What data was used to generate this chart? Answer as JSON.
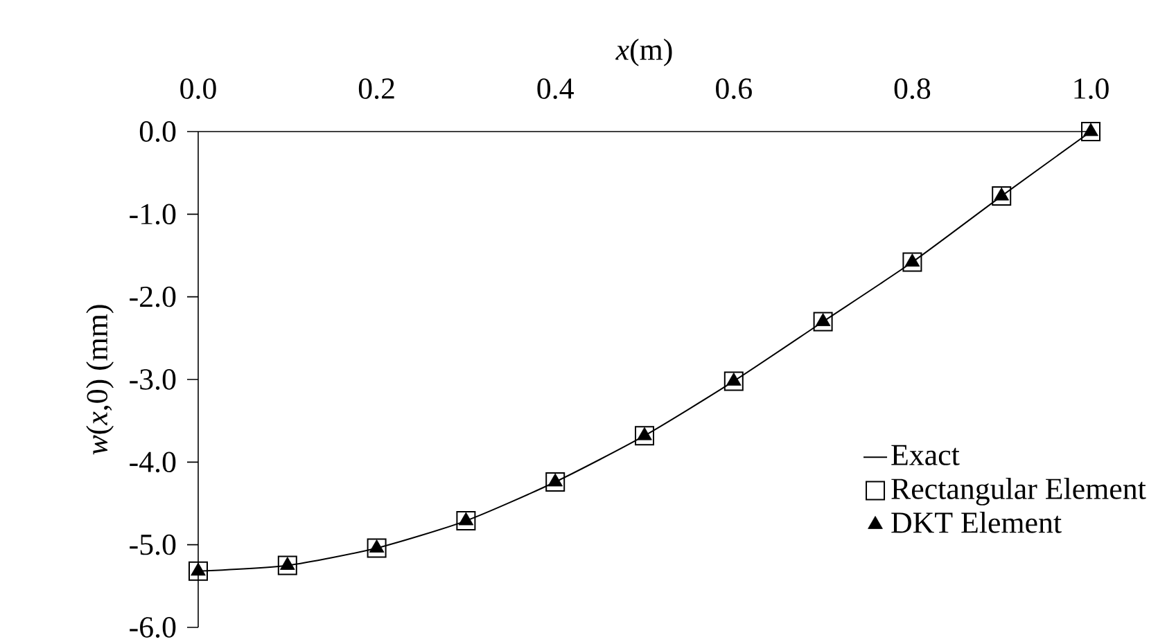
{
  "chart_data": {
    "type": "line",
    "xlabel": "*x*(m)",
    "ylabel": "*w*(*x*,0) (mm)",
    "x": [
      0.0,
      0.1,
      0.2,
      0.3,
      0.4,
      0.5,
      0.6,
      0.7,
      0.8,
      0.9,
      1.0
    ],
    "series": [
      {
        "name": "Exact",
        "color": "#000000",
        "marker": "none",
        "line_style": "solid",
        "values": [
          -5.32,
          -5.25,
          -5.04,
          -4.71,
          -4.24,
          -3.68,
          -3.02,
          -2.3,
          -1.58,
          -0.78,
          0.0
        ]
      },
      {
        "name": "Rectangular Element",
        "type": "scatter",
        "color": "#000000",
        "marker": "square",
        "values": [
          -5.32,
          -5.25,
          -5.04,
          -4.71,
          -4.24,
          -3.68,
          -3.02,
          -2.3,
          -1.58,
          -0.78,
          0.0
        ]
      },
      {
        "name": "DKT Element",
        "type": "scatter",
        "color": "#000000",
        "marker": "triangle",
        "values": [
          -5.32,
          -5.25,
          -5.04,
          -4.71,
          -4.24,
          -3.68,
          -3.02,
          -2.3,
          -1.58,
          -0.78,
          0.0
        ]
      }
    ],
    "xlim": [
      0.0,
      1.0
    ],
    "xticks": [
      {
        "value": 0,
        "label": "0.0"
      },
      0.2,
      0.4,
      0.6,
      0.8,
      {
        "value": 1,
        "label": "1.0"
      }
    ],
    "ylim": [
      -6.0,
      0.0
    ],
    "yticks": [
      {
        "value": -6,
        "label": "-6.0"
      },
      {
        "value": -5,
        "label": "-5.0"
      },
      {
        "value": -4,
        "label": "-4.0"
      },
      {
        "value": -3,
        "label": "-3.0"
      },
      {
        "value": -2,
        "label": "-2.0"
      },
      {
        "value": -1,
        "label": "-1.0"
      },
      {
        "value": 0,
        "label": "0.0"
      }
    ],
    "grid": false,
    "legend": "bottom right"
  }
}
